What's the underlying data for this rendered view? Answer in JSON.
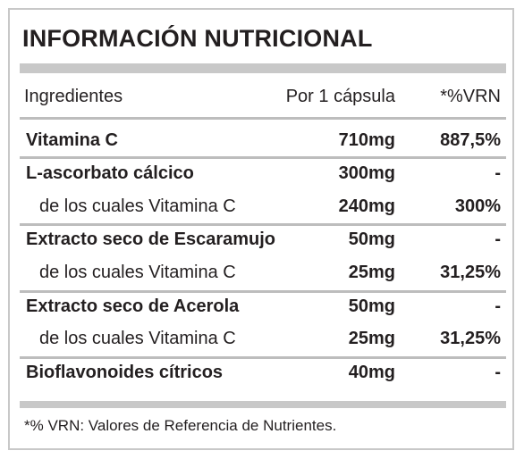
{
  "title": "INFORMACIÓN NUTRICIONAL",
  "header": {
    "ingredients": "Ingredientes",
    "per_capsule": "Por 1 cápsula",
    "vrn": "*%VRN"
  },
  "rows": [
    {
      "name": "Vitamina C",
      "qty": "710mg",
      "vrn": "887,5%",
      "bold": true
    },
    {
      "name": "L-ascorbato cálcico",
      "qty": "300mg",
      "vrn": "-",
      "bold": true
    },
    {
      "name": "de los cuales Vitamina C",
      "qty": "240mg",
      "vrn": "300%",
      "bold": false
    },
    {
      "name": "Extracto seco de Escaramujo",
      "qty": "50mg",
      "vrn": "-",
      "bold": true
    },
    {
      "name": "de los cuales Vitamina C",
      "qty": "25mg",
      "vrn": "31,25%",
      "bold": false
    },
    {
      "name": "Extracto seco de Acerola",
      "qty": "50mg",
      "vrn": "-",
      "bold": true
    },
    {
      "name": "de los cuales Vitamina C",
      "qty": "25mg",
      "vrn": "31,25%",
      "bold": false
    },
    {
      "name": "Bioflavonoides cítricos",
      "qty": "40mg",
      "vrn": "-",
      "bold": true
    }
  ],
  "footnote": "*% VRN: Valores de Referencia de Nutrientes.",
  "colors": {
    "border": "#c8c8c8",
    "text": "#231f20"
  }
}
